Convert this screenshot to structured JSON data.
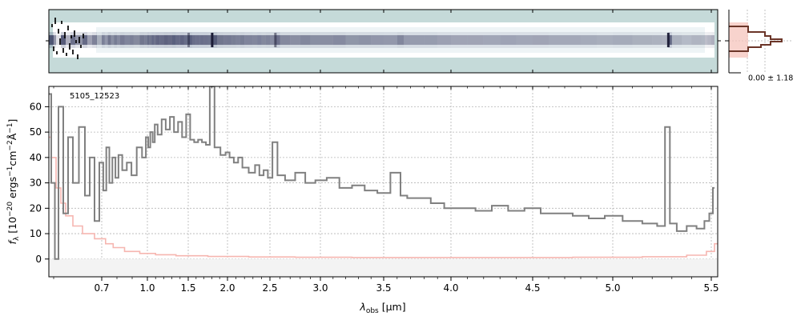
{
  "chart_data": [
    {
      "type": "heatmap",
      "panel": "2d-spectrum",
      "description_colors": {
        "background": "#c5dad9",
        "trace": "#2b2d52",
        "light": "#ffffff"
      }
    },
    {
      "type": "line",
      "panel": "spatial-profile",
      "label": "0.00 ± 1.18",
      "colors": {
        "profile": "#6b3528",
        "fill": "#f6c4bc"
      }
    },
    {
      "type": "line",
      "panel": "1d-spectrum",
      "object_id": "5105_12523",
      "xlabel_main": "λ",
      "xlabel_sub": "obs",
      "xlabel_unit": " [μm]",
      "ylabel_main": "f",
      "ylabel_sub": "λ",
      "ylabel_unit_a": " [10",
      "ylabel_unit_b": "−20",
      "ylabel_unit_c": " ergs",
      "ylabel_unit_d": "−1",
      "ylabel_unit_e": "cm",
      "ylabel_unit_f": "−2",
      "ylabel_unit_g": "Å",
      "ylabel_unit_h": "−1",
      "ylabel_unit_i": "]",
      "xticks": [
        0.7,
        1.0,
        1.5,
        2.0,
        2.5,
        3.0,
        3.5,
        4.0,
        4.5,
        5.0,
        5.5
      ],
      "xtick_labels": [
        "0.7",
        "1.0",
        "1.5",
        "2.0",
        "2.5",
        "3.0",
        "3.5",
        "4.0",
        "4.5",
        "5.0",
        "5.5"
      ],
      "yticks": [
        0,
        10,
        20,
        30,
        40,
        50,
        60
      ],
      "ytick_labels": [
        "0",
        "10",
        "20",
        "30",
        "40",
        "50",
        "60"
      ],
      "ylim": [
        -7,
        68
      ],
      "grid": true,
      "series": [
        {
          "role": "flux",
          "color": "#808080",
          "points": [
            [
              0.59,
              65
            ],
            [
              0.6,
              30
            ],
            [
              0.605,
              0
            ],
            [
              0.615,
              60
            ],
            [
              0.625,
              18
            ],
            [
              0.635,
              48
            ],
            [
              0.645,
              30
            ],
            [
              0.66,
              52
            ],
            [
              0.67,
              25
            ],
            [
              0.68,
              40
            ],
            [
              0.69,
              15
            ],
            [
              0.7,
              38
            ],
            [
              0.72,
              27
            ],
            [
              0.74,
              44
            ],
            [
              0.76,
              30
            ],
            [
              0.78,
              40
            ],
            [
              0.8,
              32
            ],
            [
              0.82,
              41
            ],
            [
              0.85,
              35
            ],
            [
              0.88,
              38
            ],
            [
              0.91,
              33
            ],
            [
              0.95,
              44
            ],
            [
              0.98,
              40
            ],
            [
              1.0,
              48
            ],
            [
              1.02,
              44
            ],
            [
              1.05,
              50
            ],
            [
              1.08,
              46
            ],
            [
              1.1,
              53
            ],
            [
              1.15,
              49
            ],
            [
              1.2,
              55
            ],
            [
              1.25,
              51
            ],
            [
              1.3,
              56
            ],
            [
              1.35,
              50
            ],
            [
              1.4,
              54
            ],
            [
              1.45,
              48
            ],
            [
              1.5,
              57
            ],
            [
              1.55,
              47
            ],
            [
              1.6,
              46
            ],
            [
              1.65,
              47
            ],
            [
              1.7,
              46
            ],
            [
              1.75,
              45
            ],
            [
              1.8,
              68
            ],
            [
              1.87,
              44
            ],
            [
              1.95,
              41
            ],
            [
              2.0,
              42
            ],
            [
              2.05,
              40
            ],
            [
              2.1,
              38
            ],
            [
              2.15,
              40
            ],
            [
              2.2,
              36
            ],
            [
              2.3,
              34
            ],
            [
              2.35,
              37
            ],
            [
              2.4,
              33
            ],
            [
              2.45,
              35
            ],
            [
              2.5,
              32
            ],
            [
              2.55,
              46
            ],
            [
              2.6,
              33
            ],
            [
              2.7,
              31
            ],
            [
              2.8,
              34
            ],
            [
              2.9,
              30
            ],
            [
              3.0,
              31
            ],
            [
              3.1,
              32
            ],
            [
              3.2,
              28
            ],
            [
              3.3,
              29
            ],
            [
              3.4,
              27
            ],
            [
              3.5,
              26
            ],
            [
              3.6,
              34
            ],
            [
              3.65,
              25
            ],
            [
              3.7,
              24
            ],
            [
              3.8,
              24
            ],
            [
              3.9,
              22
            ],
            [
              4.0,
              20
            ],
            [
              4.1,
              20
            ],
            [
              4.2,
              19
            ],
            [
              4.3,
              21
            ],
            [
              4.4,
              19
            ],
            [
              4.5,
              20
            ],
            [
              4.6,
              18
            ],
            [
              4.7,
              18
            ],
            [
              4.8,
              17
            ],
            [
              4.9,
              16
            ],
            [
              5.0,
              17
            ],
            [
              5.1,
              15
            ],
            [
              5.2,
              14
            ],
            [
              5.25,
              13
            ],
            [
              5.28,
              52
            ],
            [
              5.3,
              14
            ],
            [
              5.35,
              11
            ],
            [
              5.4,
              13
            ],
            [
              5.45,
              12
            ],
            [
              5.48,
              15
            ],
            [
              5.5,
              18
            ],
            [
              5.51,
              28
            ]
          ]
        },
        {
          "role": "uncertainty",
          "color": "#f6b6b0",
          "points": [
            [
              0.59,
              48
            ],
            [
              0.6,
              40
            ],
            [
              0.61,
              28
            ],
            [
              0.62,
              22
            ],
            [
              0.63,
              17
            ],
            [
              0.65,
              13
            ],
            [
              0.67,
              10
            ],
            [
              0.7,
              8
            ],
            [
              0.75,
              6
            ],
            [
              0.8,
              4.5
            ],
            [
              0.9,
              3
            ],
            [
              1.0,
              2.2
            ],
            [
              1.2,
              1.7
            ],
            [
              1.5,
              1.3
            ],
            [
              2.0,
              1.0
            ],
            [
              2.5,
              0.8
            ],
            [
              3.0,
              0.7
            ],
            [
              3.5,
              0.6
            ],
            [
              4.0,
              0.6
            ],
            [
              4.5,
              0.6
            ],
            [
              5.0,
              0.7
            ],
            [
              5.3,
              0.9
            ],
            [
              5.45,
              1.5
            ],
            [
              5.5,
              3
            ],
            [
              5.52,
              6
            ]
          ]
        }
      ]
    }
  ]
}
